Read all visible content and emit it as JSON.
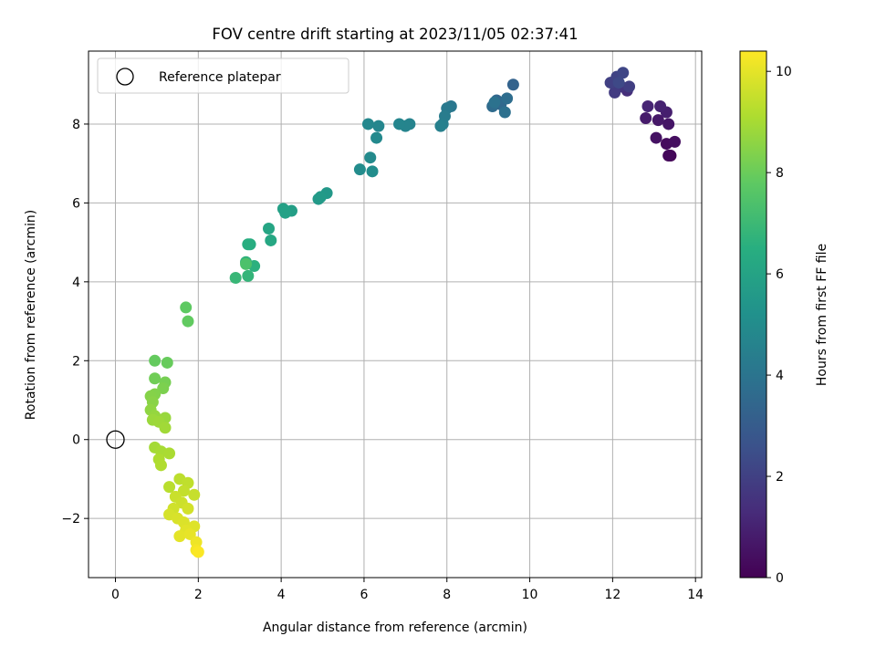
{
  "chart_data": {
    "type": "scatter",
    "title": "FOV centre drift starting at 2023/11/05 02:37:41",
    "xlabel": "Angular distance from reference (arcmin)",
    "ylabel": "Rotation from reference (arcmin)",
    "xlim": [
      -0.65,
      14.15
    ],
    "ylim": [
      -3.5,
      9.85
    ],
    "xticks": [
      0,
      2,
      4,
      6,
      8,
      10,
      12,
      14
    ],
    "yticks": [
      -2,
      0,
      2,
      4,
      6,
      8
    ],
    "grid": true,
    "legend": {
      "placement": "top-left",
      "entries": [
        "Reference platepar"
      ]
    },
    "reference_point": {
      "x": 0,
      "y": 0
    },
    "colorbar": {
      "label": "Hours from first FF file",
      "colormap": "viridis",
      "range": [
        0,
        10.4
      ],
      "ticks": [
        0,
        2,
        4,
        6,
        8,
        10
      ]
    },
    "points": [
      {
        "x": 13.4,
        "y": 7.2,
        "h": 0.1
      },
      {
        "x": 13.35,
        "y": 7.2,
        "h": 0.2
      },
      {
        "x": 13.3,
        "y": 7.5,
        "h": 0.3
      },
      {
        "x": 13.5,
        "y": 7.55,
        "h": 0.4
      },
      {
        "x": 13.05,
        "y": 7.65,
        "h": 0.5
      },
      {
        "x": 13.35,
        "y": 8.0,
        "h": 0.6
      },
      {
        "x": 13.1,
        "y": 8.1,
        "h": 0.7
      },
      {
        "x": 12.8,
        "y": 8.15,
        "h": 0.8
      },
      {
        "x": 13.3,
        "y": 8.3,
        "h": 0.9
      },
      {
        "x": 13.15,
        "y": 8.45,
        "h": 1.0
      },
      {
        "x": 12.85,
        "y": 8.45,
        "h": 1.1
      },
      {
        "x": 12.35,
        "y": 8.85,
        "h": 1.4
      },
      {
        "x": 12.2,
        "y": 8.95,
        "h": 1.6
      },
      {
        "x": 12.05,
        "y": 8.8,
        "h": 1.8
      },
      {
        "x": 12.4,
        "y": 8.95,
        "h": 1.9
      },
      {
        "x": 11.95,
        "y": 9.05,
        "h": 2.0
      },
      {
        "x": 12.1,
        "y": 9.2,
        "h": 2.1
      },
      {
        "x": 12.25,
        "y": 9.3,
        "h": 2.2
      },
      {
        "x": 12.15,
        "y": 9.05,
        "h": 2.3
      },
      {
        "x": 9.6,
        "y": 9.0,
        "h": 3.3
      },
      {
        "x": 9.2,
        "y": 8.6,
        "h": 3.4
      },
      {
        "x": 9.3,
        "y": 8.5,
        "h": 3.5
      },
      {
        "x": 9.1,
        "y": 8.45,
        "h": 3.6
      },
      {
        "x": 9.45,
        "y": 8.65,
        "h": 3.7
      },
      {
        "x": 9.4,
        "y": 8.3,
        "h": 3.8
      },
      {
        "x": 9.15,
        "y": 8.55,
        "h": 3.9
      },
      {
        "x": 8.1,
        "y": 8.45,
        "h": 4.1
      },
      {
        "x": 8.0,
        "y": 8.4,
        "h": 4.2
      },
      {
        "x": 7.95,
        "y": 8.2,
        "h": 4.3
      },
      {
        "x": 7.9,
        "y": 8.0,
        "h": 4.4
      },
      {
        "x": 7.85,
        "y": 7.95,
        "h": 4.5
      },
      {
        "x": 7.1,
        "y": 8.0,
        "h": 4.6
      },
      {
        "x": 7.0,
        "y": 7.95,
        "h": 4.65
      },
      {
        "x": 6.85,
        "y": 8.0,
        "h": 4.7
      },
      {
        "x": 6.35,
        "y": 7.95,
        "h": 4.75
      },
      {
        "x": 6.1,
        "y": 8.0,
        "h": 4.8
      },
      {
        "x": 6.3,
        "y": 7.65,
        "h": 4.85
      },
      {
        "x": 6.15,
        "y": 7.15,
        "h": 4.9
      },
      {
        "x": 5.9,
        "y": 6.85,
        "h": 5.0
      },
      {
        "x": 6.2,
        "y": 6.8,
        "h": 5.05
      },
      {
        "x": 5.1,
        "y": 6.25,
        "h": 5.5
      },
      {
        "x": 4.9,
        "y": 6.1,
        "h": 5.55
      },
      {
        "x": 4.95,
        "y": 6.15,
        "h": 5.6
      },
      {
        "x": 4.25,
        "y": 5.8,
        "h": 5.8
      },
      {
        "x": 4.05,
        "y": 5.85,
        "h": 5.85
      },
      {
        "x": 4.1,
        "y": 5.75,
        "h": 5.9
      },
      {
        "x": 3.7,
        "y": 5.35,
        "h": 6.1
      },
      {
        "x": 3.75,
        "y": 5.05,
        "h": 6.2
      },
      {
        "x": 3.25,
        "y": 4.95,
        "h": 6.4
      },
      {
        "x": 3.2,
        "y": 4.95,
        "h": 6.45
      },
      {
        "x": 3.35,
        "y": 4.4,
        "h": 6.6
      },
      {
        "x": 3.15,
        "y": 4.5,
        "h": 6.7
      },
      {
        "x": 3.2,
        "y": 4.15,
        "h": 6.8
      },
      {
        "x": 2.9,
        "y": 4.1,
        "h": 6.9
      },
      {
        "x": 3.15,
        "y": 4.45,
        "h": 7.4
      },
      {
        "x": 1.7,
        "y": 3.35,
        "h": 7.8
      },
      {
        "x": 1.75,
        "y": 3.0,
        "h": 7.85
      },
      {
        "x": 0.95,
        "y": 2.0,
        "h": 7.9
      },
      {
        "x": 1.25,
        "y": 1.95,
        "h": 7.95
      },
      {
        "x": 0.95,
        "y": 1.55,
        "h": 8.1
      },
      {
        "x": 1.2,
        "y": 1.45,
        "h": 8.2
      },
      {
        "x": 1.15,
        "y": 1.3,
        "h": 8.3
      },
      {
        "x": 0.95,
        "y": 1.15,
        "h": 8.4
      },
      {
        "x": 0.85,
        "y": 1.1,
        "h": 8.45
      },
      {
        "x": 0.9,
        "y": 0.95,
        "h": 8.5
      },
      {
        "x": 0.85,
        "y": 0.75,
        "h": 8.6
      },
      {
        "x": 0.95,
        "y": 0.6,
        "h": 8.7
      },
      {
        "x": 1.2,
        "y": 0.55,
        "h": 8.75
      },
      {
        "x": 0.9,
        "y": 0.5,
        "h": 8.8
      },
      {
        "x": 1.05,
        "y": 0.45,
        "h": 8.85
      },
      {
        "x": 1.2,
        "y": 0.3,
        "h": 8.9
      },
      {
        "x": 0.95,
        "y": -0.2,
        "h": 8.95
      },
      {
        "x": 1.1,
        "y": -0.3,
        "h": 9.0
      },
      {
        "x": 1.3,
        "y": -0.35,
        "h": 9.05
      },
      {
        "x": 1.05,
        "y": -0.5,
        "h": 9.1
      },
      {
        "x": 1.1,
        "y": -0.65,
        "h": 9.15
      },
      {
        "x": 1.3,
        "y": -1.2,
        "h": 9.3
      },
      {
        "x": 1.55,
        "y": -1.0,
        "h": 9.35
      },
      {
        "x": 1.75,
        "y": -1.1,
        "h": 9.4
      },
      {
        "x": 1.65,
        "y": -1.3,
        "h": 9.45
      },
      {
        "x": 1.9,
        "y": -1.4,
        "h": 9.5
      },
      {
        "x": 1.45,
        "y": -1.45,
        "h": 9.55
      },
      {
        "x": 1.6,
        "y": -1.6,
        "h": 9.6
      },
      {
        "x": 1.4,
        "y": -1.75,
        "h": 9.65
      },
      {
        "x": 1.75,
        "y": -1.75,
        "h": 9.7
      },
      {
        "x": 1.3,
        "y": -1.9,
        "h": 9.75
      },
      {
        "x": 1.5,
        "y": -2.0,
        "h": 9.8
      },
      {
        "x": 1.65,
        "y": -2.1,
        "h": 9.85
      },
      {
        "x": 1.9,
        "y": -2.2,
        "h": 9.9
      },
      {
        "x": 1.7,
        "y": -2.3,
        "h": 9.95
      },
      {
        "x": 1.55,
        "y": -2.45,
        "h": 10.0
      },
      {
        "x": 1.8,
        "y": -2.4,
        "h": 10.05
      },
      {
        "x": 1.95,
        "y": -2.6,
        "h": 10.15
      },
      {
        "x": 1.95,
        "y": -2.8,
        "h": 10.25
      },
      {
        "x": 2.0,
        "y": -2.85,
        "h": 10.35
      }
    ]
  }
}
